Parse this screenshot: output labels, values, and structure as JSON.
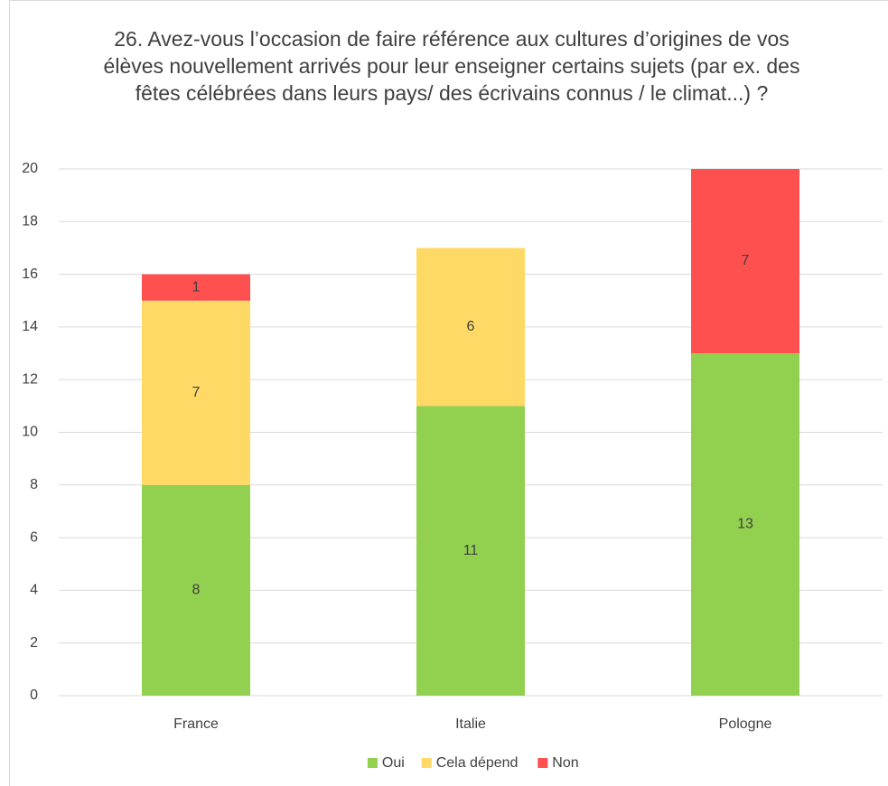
{
  "chart_data": {
    "type": "stacked_bar",
    "title": "26. Avez-vous l’occasion de faire référence aux cultures d’origines de vos élèves nouvellement arrivés pour leur enseigner certains sujets (par ex. des fêtes célébrées dans leurs pays/ des écrivains connus / le climat...) ?",
    "categories": [
      "France",
      "Italie",
      "Pologne"
    ],
    "series": [
      {
        "name": "Oui",
        "color": "#92d050",
        "values": [
          8,
          11,
          13
        ]
      },
      {
        "name": "Cela dépend",
        "color": "#ffd966",
        "values": [
          7,
          6,
          null
        ]
      },
      {
        "name": "Non",
        "color": "#ff5050",
        "values": [
          1,
          null,
          7
        ]
      }
    ],
    "ylim": [
      0,
      20
    ],
    "yticks": [
      0,
      2,
      4,
      6,
      8,
      10,
      12,
      14,
      16,
      18,
      20
    ],
    "grid": true,
    "legend": "bottom"
  }
}
